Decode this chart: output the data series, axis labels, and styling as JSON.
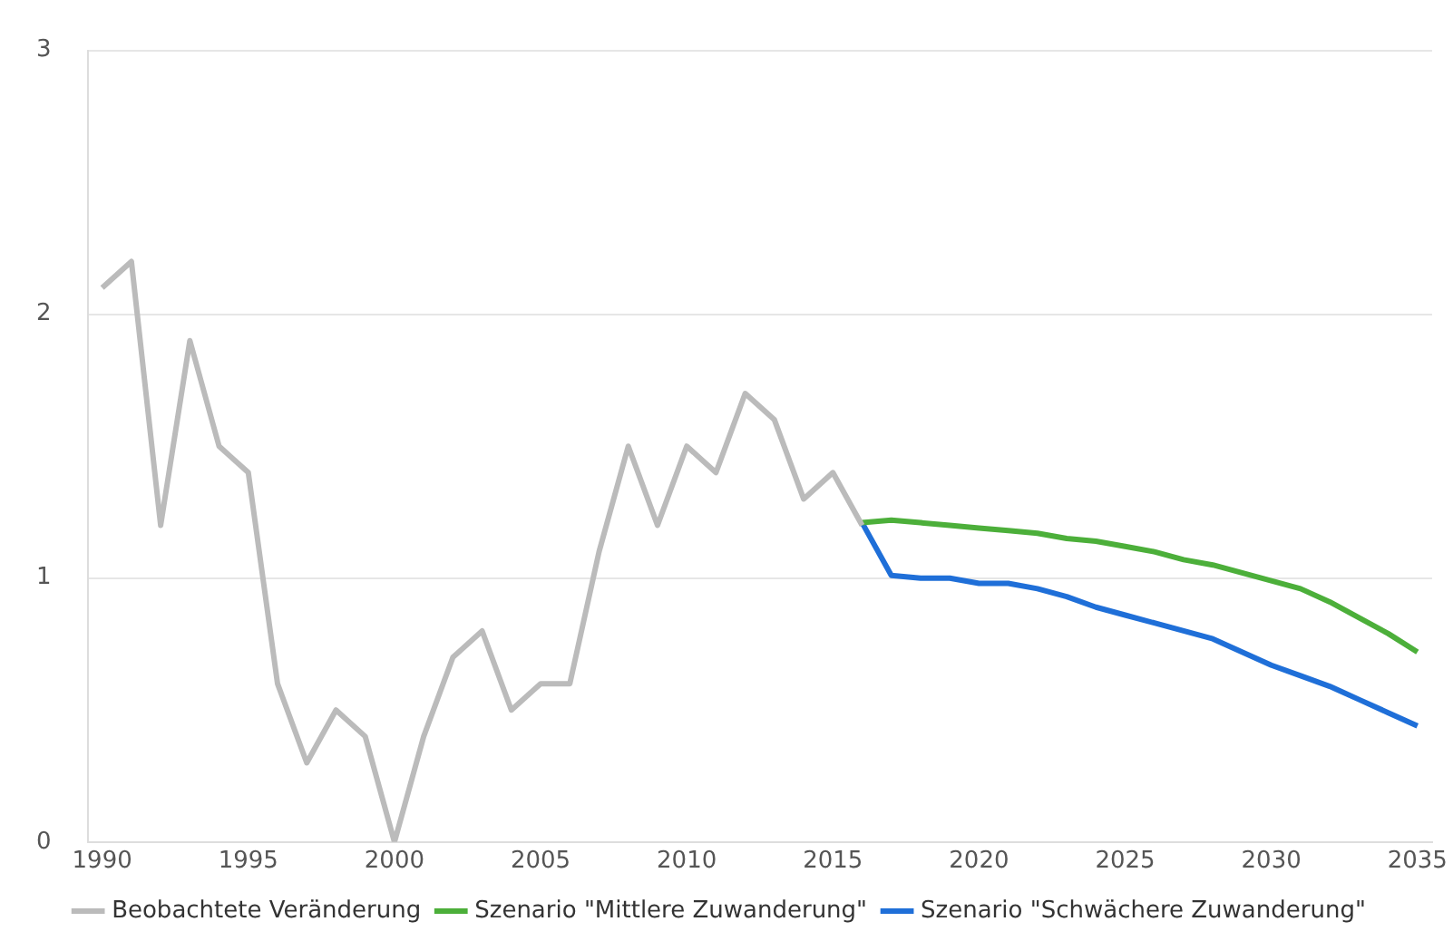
{
  "chart_data": {
    "type": "line",
    "xlim": [
      1989.5,
      2035.5
    ],
    "xticks": [
      1990,
      1995,
      2000,
      2005,
      2010,
      2015,
      2020,
      2025,
      2030,
      2035
    ],
    "ylim": [
      0,
      3
    ],
    "yticks": [
      0,
      1,
      2,
      3
    ],
    "grid": "y",
    "legend": "bottom",
    "marker": "none",
    "line_style": "solid",
    "series": [
      {
        "name": "Beobachtete Veränderung",
        "color": "#bbbbbb",
        "x": [
          1990,
          1991,
          1992,
          1993,
          1994,
          1995,
          1996,
          1997,
          1998,
          1999,
          2000,
          2001,
          2002,
          2003,
          2004,
          2005,
          2006,
          2007,
          2008,
          2009,
          2010,
          2011,
          2012,
          2013,
          2014,
          2015,
          2016
        ],
        "values": [
          2.1,
          2.2,
          1.2,
          1.9,
          1.5,
          1.4,
          0.6,
          0.3,
          0.5,
          0.4,
          0,
          0.4,
          0.7,
          0.8,
          0.5,
          0.6,
          0.6,
          1.1,
          1.5,
          1.2,
          1.5,
          1.4,
          1.7,
          1.6,
          1.3,
          1.4,
          1.2
        ]
      },
      {
        "name": "Szenario \"Mittlere Zuwanderung\"",
        "color": "#4caf3a",
        "x": [
          2016,
          2017,
          2018,
          2019,
          2020,
          2021,
          2022,
          2023,
          2024,
          2025,
          2026,
          2027,
          2028,
          2029,
          2030,
          2031,
          2032,
          2033,
          2034,
          2035
        ],
        "values": [
          1.21,
          1.22,
          1.21,
          1.2,
          1.19,
          1.18,
          1.17,
          1.15,
          1.14,
          1.12,
          1.1,
          1.07,
          1.05,
          1.02,
          0.99,
          0.96,
          0.91,
          0.85,
          0.79,
          0.72
        ]
      },
      {
        "name": "Szenario \"Schwächere Zuwanderung\"",
        "color": "#1f6fd8",
        "x": [
          2016,
          2017,
          2018,
          2019,
          2020,
          2021,
          2022,
          2023,
          2024,
          2025,
          2026,
          2027,
          2028,
          2029,
          2030,
          2031,
          2032,
          2033,
          2034,
          2035
        ],
        "values": [
          1.21,
          1.01,
          1.0,
          1.0,
          0.98,
          0.98,
          0.96,
          0.93,
          0.89,
          0.86,
          0.83,
          0.8,
          0.77,
          0.72,
          0.67,
          0.63,
          0.59,
          0.54,
          0.49,
          0.44
        ]
      }
    ]
  }
}
